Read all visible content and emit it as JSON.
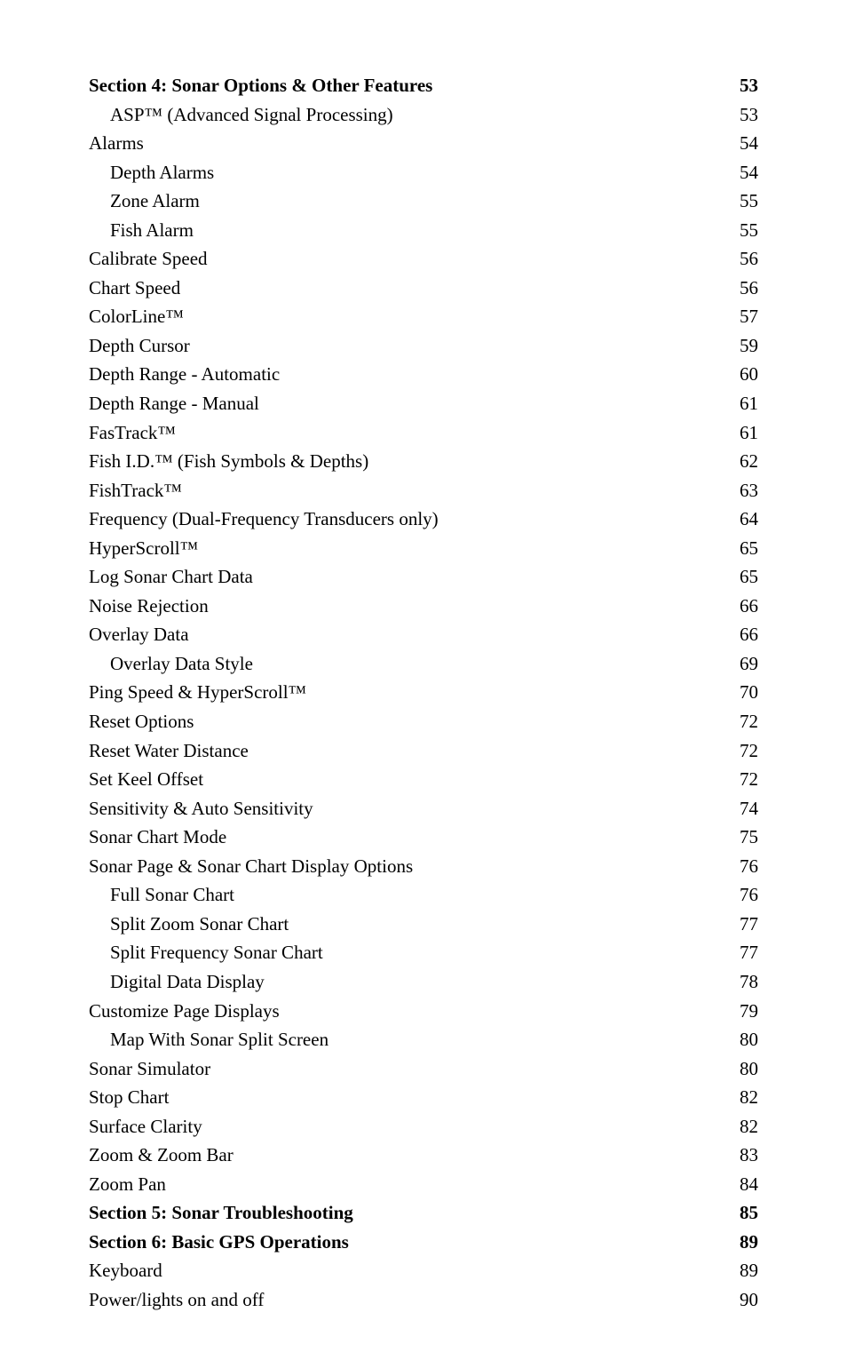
{
  "toc": [
    {
      "label": "Section 4:  Sonar Options & Other Features",
      "page": "53",
      "bold": true,
      "indent": 0
    },
    {
      "label": "ASP™ (Advanced Signal Processing)",
      "page": "53",
      "bold": false,
      "indent": 1
    },
    {
      "label": "Alarms",
      "page": "54",
      "bold": false,
      "indent": 0
    },
    {
      "label": "Depth Alarms",
      "page": "54",
      "bold": false,
      "indent": 1
    },
    {
      "label": "Zone Alarm",
      "page": "55",
      "bold": false,
      "indent": 1
    },
    {
      "label": "Fish Alarm",
      "page": "55",
      "bold": false,
      "indent": 1
    },
    {
      "label": "Calibrate Speed",
      "page": "56",
      "bold": false,
      "indent": 0
    },
    {
      "label": "Chart Speed",
      "page": "56",
      "bold": false,
      "indent": 0
    },
    {
      "label": "ColorLine™",
      "page": "57",
      "bold": false,
      "indent": 0
    },
    {
      "label": "Depth Cursor",
      "page": "59",
      "bold": false,
      "indent": 0
    },
    {
      "label": "Depth Range - Automatic",
      "page": "60",
      "bold": false,
      "indent": 0
    },
    {
      "label": "Depth Range - Manual",
      "page": "61",
      "bold": false,
      "indent": 0
    },
    {
      "label": "FasTrack™",
      "page": "61",
      "bold": false,
      "indent": 0
    },
    {
      "label": "Fish I.D.™ (Fish Symbols & Depths)",
      "page": "62",
      "bold": false,
      "indent": 0
    },
    {
      "label": "FishTrack™",
      "page": "63",
      "bold": false,
      "indent": 0
    },
    {
      "label": "Frequency (Dual-Frequency Transducers only)",
      "page": "64",
      "bold": false,
      "indent": 0
    },
    {
      "label": "HyperScroll™",
      "page": "65",
      "bold": false,
      "indent": 0
    },
    {
      "label": "Log Sonar Chart Data",
      "page": "65",
      "bold": false,
      "indent": 0
    },
    {
      "label": "Noise Rejection",
      "page": "66",
      "bold": false,
      "indent": 0
    },
    {
      "label": "Overlay Data",
      "page": "66",
      "bold": false,
      "indent": 0
    },
    {
      "label": "Overlay Data Style",
      "page": "69",
      "bold": false,
      "indent": 1
    },
    {
      "label": "Ping Speed & HyperScroll™",
      "page": "70",
      "bold": false,
      "indent": 0
    },
    {
      "label": "Reset Options",
      "page": "72",
      "bold": false,
      "indent": 0
    },
    {
      "label": "Reset Water Distance",
      "page": "72",
      "bold": false,
      "indent": 0
    },
    {
      "label": "Set Keel Offset",
      "page": "72",
      "bold": false,
      "indent": 0
    },
    {
      "label": "Sensitivity & Auto Sensitivity",
      "page": "74",
      "bold": false,
      "indent": 0
    },
    {
      "label": "Sonar Chart Mode",
      "page": "75",
      "bold": false,
      "indent": 0
    },
    {
      "label": "Sonar Page & Sonar Chart Display Options",
      "page": "76",
      "bold": false,
      "indent": 0
    },
    {
      "label": "Full Sonar Chart",
      "page": "76",
      "bold": false,
      "indent": 1
    },
    {
      "label": "Split Zoom Sonar Chart",
      "page": "77",
      "bold": false,
      "indent": 1
    },
    {
      "label": "Split Frequency Sonar Chart",
      "page": "77",
      "bold": false,
      "indent": 1
    },
    {
      "label": "Digital Data Display",
      "page": "78",
      "bold": false,
      "indent": 1
    },
    {
      "label": "Customize Page Displays",
      "page": "79",
      "bold": false,
      "indent": 0
    },
    {
      "label": "Map With Sonar Split Screen",
      "page": "80",
      "bold": false,
      "indent": 1
    },
    {
      "label": "Sonar Simulator",
      "page": "80",
      "bold": false,
      "indent": 0
    },
    {
      "label": "Stop Chart",
      "page": "82",
      "bold": false,
      "indent": 0
    },
    {
      "label": "Surface Clarity",
      "page": "82",
      "bold": false,
      "indent": 0
    },
    {
      "label": "Zoom & Zoom Bar",
      "page": "83",
      "bold": false,
      "indent": 0
    },
    {
      "label": "Zoom Pan",
      "page": "84",
      "bold": false,
      "indent": 0
    },
    {
      "label": "Section 5: Sonar Troubleshooting",
      "page": "85",
      "bold": true,
      "indent": 0
    },
    {
      "label": "Section 6: Basic GPS Operations",
      "page": "89",
      "bold": true,
      "indent": 0
    },
    {
      "label": "Keyboard",
      "page": "89",
      "bold": false,
      "indent": 0
    },
    {
      "label": "Power/lights on and off",
      "page": "90",
      "bold": false,
      "indent": 0
    }
  ]
}
